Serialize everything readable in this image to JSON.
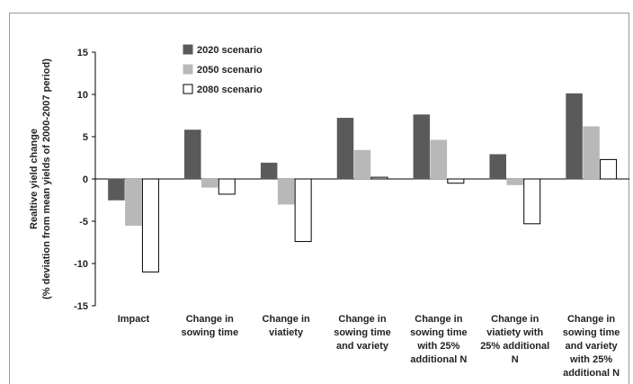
{
  "chart_data": {
    "type": "bar",
    "title": "",
    "xlabel": "",
    "ylabel": [
      "Realtive yield change",
      "(% deviation from mean yields of 2000-2007 period)"
    ],
    "ylim": [
      -15,
      15
    ],
    "yticks": [
      15,
      10,
      5,
      0,
      -5,
      -10,
      -15
    ],
    "grid": false,
    "legend_position": "top-left",
    "categories": [
      [
        "Impact"
      ],
      [
        "Change in",
        "sowing time"
      ],
      [
        "Change in",
        "viatiety"
      ],
      [
        "Change in",
        "sowing time",
        "and variety"
      ],
      [
        "Change in",
        "sowing time",
        "with 25%",
        "additional N"
      ],
      [
        "Change in",
        "viatiety with",
        "25% additional",
        "N"
      ],
      [
        "Change in",
        "sowing time",
        "and variety",
        "with 25%",
        "additional N"
      ]
    ],
    "series": [
      {
        "name": "2020 scenario",
        "color": "#5a5a5a",
        "stroke": "#5a5a5a",
        "values": [
          -2.5,
          5.8,
          1.9,
          7.2,
          7.6,
          2.9,
          10.1
        ]
      },
      {
        "name": "2050 scenario",
        "color": "#b8b8b8",
        "stroke": "#b8b8b8",
        "values": [
          -5.5,
          -1.0,
          -3.0,
          3.4,
          4.6,
          -0.7,
          6.2
        ]
      },
      {
        "name": "2080 scenario",
        "color": "#ffffff",
        "stroke": "#000000",
        "values": [
          -11.0,
          -1.8,
          -7.4,
          0.2,
          -0.5,
          -5.3,
          2.3
        ]
      }
    ]
  }
}
